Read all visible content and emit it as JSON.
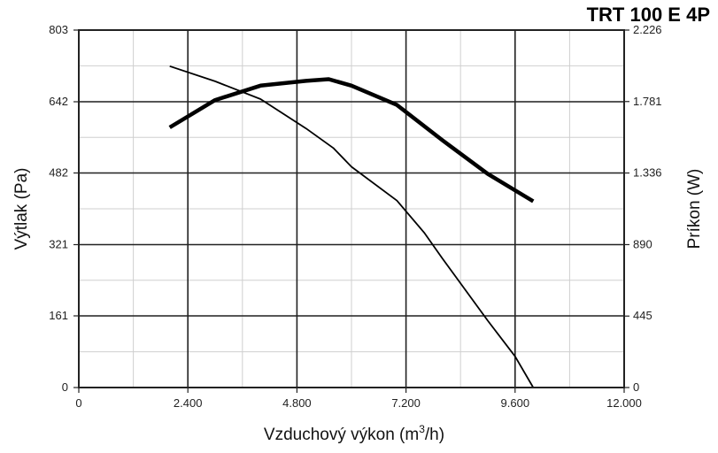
{
  "chart_data": {
    "type": "line",
    "title": "TRT 100 E 4P",
    "xlabel": "Vzduchový výkon (m",
    "xlabel_sup": "3",
    "xlabel_end": "/h)",
    "ylabel_left": "Výtlak (Pa)",
    "ylabel_right": "Príkon (W)",
    "xlim": [
      0,
      12000
    ],
    "ylim_left": [
      0,
      803
    ],
    "ylim_right": [
      0,
      2226
    ],
    "x_ticks": [
      0,
      2400,
      4800,
      7200,
      9600,
      12000
    ],
    "x_tick_labels": [
      "0",
      "2.400",
      "4.800",
      "7.200",
      "9.600",
      "12.000"
    ],
    "y_left_ticks": [
      0,
      161,
      321,
      482,
      642,
      803
    ],
    "y_left_tick_labels": [
      "0",
      "161",
      "321",
      "482",
      "642",
      "803"
    ],
    "y_right_ticks": [
      0,
      445,
      890,
      1336,
      1781,
      2226
    ],
    "y_right_tick_labels": [
      "0",
      "445",
      "890",
      "1.336",
      "1.781",
      "2.226"
    ],
    "grid": true,
    "series": [
      {
        "axis": "left",
        "line_weight": "thin",
        "x": [
          2000,
          3000,
          4000,
          5000,
          5600,
          6000,
          7000,
          7600,
          8000,
          9000,
          9600,
          10000
        ],
        "y": [
          722,
          688,
          648,
          582,
          538,
          496,
          420,
          348,
          290,
          150,
          70,
          0
        ]
      },
      {
        "axis": "right",
        "line_weight": "bold",
        "x": [
          2000,
          3000,
          4000,
          5000,
          5500,
          6000,
          7000,
          8000,
          9000,
          10000
        ],
        "y": [
          1620,
          1790,
          1880,
          1910,
          1920,
          1880,
          1760,
          1540,
          1330,
          1160
        ]
      }
    ]
  }
}
